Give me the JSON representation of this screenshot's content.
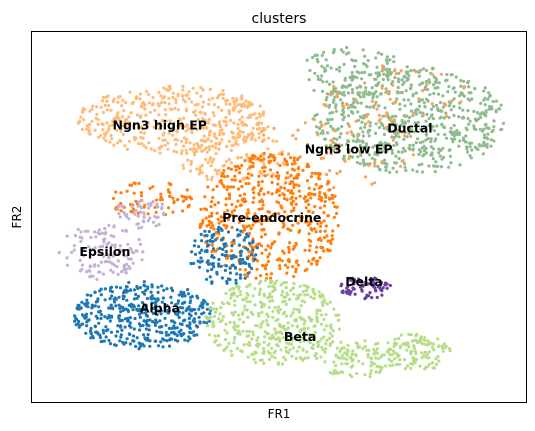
{
  "chart_data": {
    "type": "scatter",
    "title": "clusters",
    "xlabel": "FR1",
    "ylabel": "FR2",
    "xlim": [
      0,
      100
    ],
    "ylim": [
      0,
      100
    ],
    "ticks": "hidden",
    "grid": false,
    "legend": "on data",
    "clusters": [
      {
        "name": "Ductal",
        "color": "#8fbc8f",
        "label_pos": [
          71.9,
          72.8
        ],
        "regions": [
          {
            "cx": 76.3,
            "cy": 76.3,
            "rx": 19.5,
            "ry": 14.6,
            "n": 650
          },
          {
            "cx": 65.3,
            "cy": 89.0,
            "rx": 11.9,
            "ry": 6.9,
            "n": 120
          }
        ]
      },
      {
        "name": "Ngn3 low EP",
        "color": "#f7a35c",
        "label_pos": [
          55.2,
          67.2
        ],
        "regions": [
          {
            "cx": 61.7,
            "cy": 69.2,
            "rx": 16.5,
            "ry": 11.5,
            "n": 70
          },
          {
            "cx": 73.9,
            "cy": 82.6,
            "rx": 14.4,
            "ry": 8.7,
            "n": 45
          }
        ]
      },
      {
        "name": "Ngn3 high EP",
        "color": "#ffbb78",
        "label_pos": [
          16.3,
          73.6
        ],
        "regions": [
          {
            "cx": 28.8,
            "cy": 76.3,
            "rx": 19.5,
            "ry": 9.2,
            "n": 420
          },
          {
            "cx": 40.9,
            "cy": 66.2,
            "rx": 11.6,
            "ry": 6.9,
            "n": 120
          }
        ]
      },
      {
        "name": "Pre-endocrine",
        "color": "#ff7f0e",
        "label_pos": [
          38.5,
          48.6
        ],
        "regions": [
          {
            "cx": 48.2,
            "cy": 50.1,
            "rx": 14.4,
            "ry": 17.2,
            "n": 520
          },
          {
            "cx": 24.3,
            "cy": 55.2,
            "rx": 9.5,
            "ry": 4.9,
            "n": 70
          }
        ]
      },
      {
        "name": "Epsilon",
        "color": "#c5b0d5",
        "label_pos": [
          9.6,
          39.5
        ],
        "regions": [
          {
            "cx": 14.1,
            "cy": 40.6,
            "rx": 8.6,
            "ry": 7.5,
            "n": 120
          },
          {
            "cx": 22.4,
            "cy": 50.7,
            "rx": 6.0,
            "ry": 4.0,
            "n": 50
          }
        ]
      },
      {
        "name": "Alpha",
        "color": "#1f77b4",
        "label_pos": [
          21.8,
          24.2
        ],
        "regions": [
          {
            "cx": 22.4,
            "cy": 23.4,
            "rx": 14.0,
            "ry": 9.2,
            "n": 430
          },
          {
            "cx": 38.9,
            "cy": 39.5,
            "rx": 7.0,
            "ry": 8.0,
            "n": 140
          }
        ]
      },
      {
        "name": "Delta",
        "color": "#6b3fa0",
        "label_pos": [
          63.4,
          31.4
        ],
        "regions": [
          {
            "cx": 67.5,
            "cy": 31.0,
            "rx": 5.2,
            "ry": 3.1,
            "n": 75
          }
        ]
      },
      {
        "name": "Beta",
        "color": "#b5de87",
        "label_pos": [
          51.0,
          16.5
        ],
        "regions": [
          {
            "cx": 48.7,
            "cy": 21.5,
            "rx": 13.8,
            "ry": 11.5,
            "n": 420
          },
          {
            "cx": 65.7,
            "cy": 11.5,
            "rx": 8.5,
            "ry": 5.2,
            "n": 110
          },
          {
            "cx": 78.3,
            "cy": 13.8,
            "rx": 7.0,
            "ry": 5.2,
            "n": 110
          }
        ]
      }
    ]
  }
}
